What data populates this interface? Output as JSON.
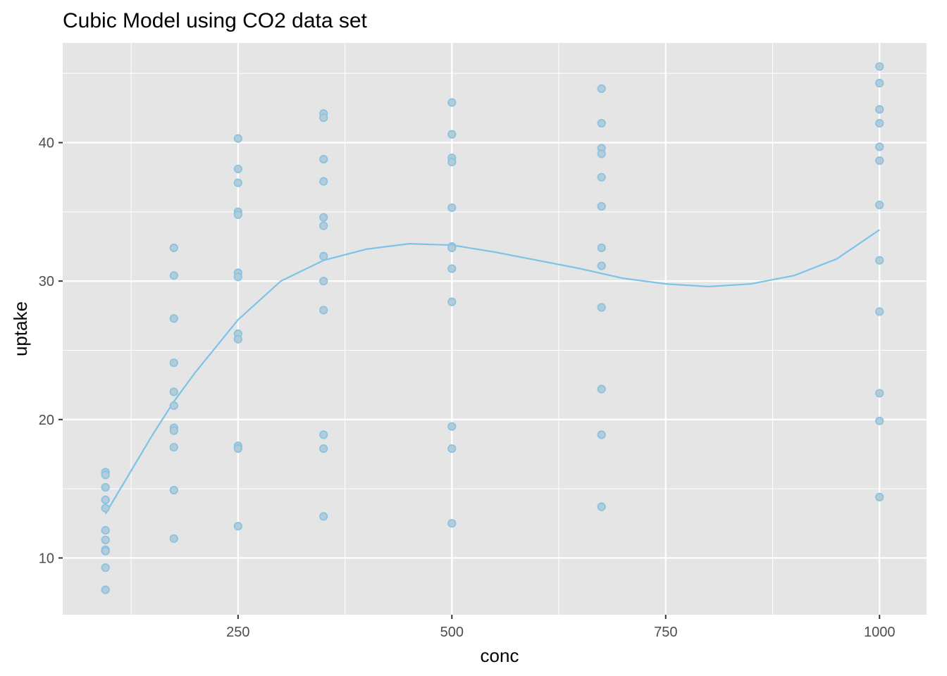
{
  "chart_data": {
    "type": "scatter",
    "title": "Cubic Model using CO2 data set",
    "xlabel": "conc",
    "ylabel": "uptake",
    "xlim": [
      45,
      1055
    ],
    "ylim": [
      5.9,
      47.2
    ],
    "x_ticks": [
      250,
      500,
      750,
      1000
    ],
    "x_tick_labels": [
      "250",
      "500",
      "750",
      "1000"
    ],
    "y_ticks": [
      10,
      20,
      30,
      40
    ],
    "y_tick_labels": [
      "10",
      "20",
      "30",
      "40"
    ],
    "x_minor_ticks": [
      125,
      375,
      625,
      875
    ],
    "y_minor_ticks": [
      15,
      25,
      35,
      45
    ],
    "grid": true,
    "legend": "none",
    "colors": {
      "panel": "#e5e5e5",
      "grid": "#ffffff",
      "point_fill": "#b7cbd6",
      "point_stroke": "#87c4e3",
      "line": "#7cc3e8"
    },
    "series": [
      {
        "type": "scatter",
        "points": [
          [
            95,
            16.2
          ],
          [
            95,
            16.0
          ],
          [
            95,
            15.1
          ],
          [
            95,
            14.2
          ],
          [
            95,
            13.6
          ],
          [
            95,
            12.0
          ],
          [
            95,
            11.3
          ],
          [
            95,
            10.6
          ],
          [
            95,
            10.5
          ],
          [
            95,
            9.3
          ],
          [
            95,
            7.7
          ],
          [
            175,
            32.4
          ],
          [
            175,
            30.4
          ],
          [
            175,
            27.3
          ],
          [
            175,
            24.1
          ],
          [
            175,
            22.0
          ],
          [
            175,
            21.0
          ],
          [
            175,
            19.4
          ],
          [
            175,
            19.2
          ],
          [
            175,
            18.0
          ],
          [
            175,
            14.9
          ],
          [
            175,
            11.4
          ],
          [
            250,
            40.3
          ],
          [
            250,
            38.1
          ],
          [
            250,
            37.1
          ],
          [
            250,
            35.0
          ],
          [
            250,
            34.8
          ],
          [
            250,
            30.6
          ],
          [
            250,
            30.3
          ],
          [
            250,
            26.2
          ],
          [
            250,
            25.8
          ],
          [
            250,
            18.1
          ],
          [
            250,
            17.9
          ],
          [
            250,
            12.3
          ],
          [
            350,
            42.1
          ],
          [
            350,
            41.8
          ],
          [
            350,
            38.8
          ],
          [
            350,
            37.2
          ],
          [
            350,
            34.6
          ],
          [
            350,
            34.0
          ],
          [
            350,
            31.8
          ],
          [
            350,
            30.0
          ],
          [
            350,
            27.9
          ],
          [
            350,
            18.9
          ],
          [
            350,
            17.9
          ],
          [
            350,
            13.0
          ],
          [
            500,
            42.9
          ],
          [
            500,
            40.6
          ],
          [
            500,
            38.9
          ],
          [
            500,
            38.6
          ],
          [
            500,
            35.3
          ],
          [
            500,
            32.5
          ],
          [
            500,
            32.4
          ],
          [
            500,
            30.9
          ],
          [
            500,
            28.5
          ],
          [
            500,
            19.5
          ],
          [
            500,
            17.9
          ],
          [
            500,
            12.5
          ],
          [
            675,
            43.9
          ],
          [
            675,
            41.4
          ],
          [
            675,
            39.6
          ],
          [
            675,
            39.2
          ],
          [
            675,
            37.5
          ],
          [
            675,
            35.4
          ],
          [
            675,
            32.4
          ],
          [
            675,
            31.1
          ],
          [
            675,
            28.1
          ],
          [
            675,
            22.2
          ],
          [
            675,
            18.9
          ],
          [
            675,
            13.7
          ],
          [
            1000,
            45.5
          ],
          [
            1000,
            44.3
          ],
          [
            1000,
            42.4
          ],
          [
            1000,
            41.4
          ],
          [
            1000,
            39.7
          ],
          [
            1000,
            38.7
          ],
          [
            1000,
            35.5
          ],
          [
            1000,
            31.5
          ],
          [
            1000,
            27.8
          ],
          [
            1000,
            21.9
          ],
          [
            1000,
            19.9
          ],
          [
            1000,
            14.4
          ]
        ]
      },
      {
        "type": "line",
        "curve": "cubic fit",
        "points": [
          [
            95,
            13.2
          ],
          [
            125,
            16.3
          ],
          [
            150,
            18.9
          ],
          [
            175,
            21.3
          ],
          [
            200,
            23.4
          ],
          [
            250,
            27.2
          ],
          [
            300,
            30.0
          ],
          [
            350,
            31.5
          ],
          [
            400,
            32.3
          ],
          [
            450,
            32.7
          ],
          [
            500,
            32.6
          ],
          [
            550,
            32.1
          ],
          [
            600,
            31.5
          ],
          [
            650,
            30.9
          ],
          [
            700,
            30.2
          ],
          [
            750,
            29.8
          ],
          [
            800,
            29.6
          ],
          [
            850,
            29.8
          ],
          [
            900,
            30.4
          ],
          [
            950,
            31.6
          ],
          [
            1000,
            33.7
          ]
        ]
      }
    ]
  }
}
